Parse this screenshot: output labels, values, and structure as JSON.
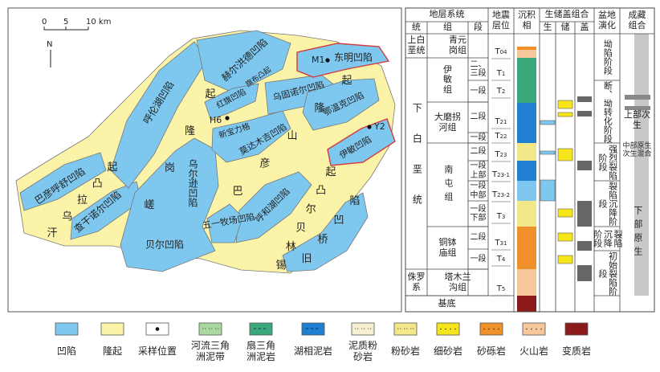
{
  "map": {
    "scale": {
      "labels": [
        "0",
        "5",
        "10 km"
      ]
    },
    "north": "N",
    "labels": [
      "巴彦呼舒凹陷",
      "汗乌拉凸起",
      "查干诺尔凹陷",
      "呼伦湖凹陷",
      "嵯岗隆起",
      "赫尔洪德凹陷",
      "旗布凸起",
      "红旗凹陷",
      "新宝力格",
      "乌固诺尔凹陷",
      "东明凹陷",
      "鄂温克凹陷",
      "莫达木吉凹陷",
      "巴彦山隆起",
      "乌尔逊凹陷",
      "贝尔凹陷",
      "五一牧场凹陷",
      "呼和湖凹陷",
      "伊敏凹陷",
      "锡林贝尔凸起",
      "旧桥凹陷"
    ],
    "wells": [
      "M1",
      "H6",
      "Y2"
    ]
  },
  "table": {
    "headers": {
      "strata": "地层系统",
      "series": "统",
      "formation": "组",
      "member": "段",
      "horizon": "地震层位",
      "facies": "沉积相",
      "combo": "生储盖组合",
      "source": "生",
      "reservoir": "储",
      "seal": "盖",
      "evolution": "盆地演化",
      "play": "成藏组合"
    },
    "series": [
      "上白垩统",
      "下白垩统",
      "侏罗系"
    ],
    "formations": [
      "青元岗组",
      "伊敏组",
      "大磨拐河组",
      "南屯组",
      "铜钵庙组",
      "塔木兰沟组"
    ],
    "members": [
      "二、三段",
      "一段",
      "二段",
      "一段",
      "二段",
      "一段上部",
      "一段中部",
      "一段下部",
      "二段",
      "一段"
    ],
    "horizons": [
      {
        "main": "T",
        "sub": "04"
      },
      {
        "main": "T",
        "sub": "1"
      },
      {
        "main": "T",
        "sub": "2"
      },
      {
        "main": "T",
        "sub": "21"
      },
      {
        "main": "T",
        "sub": "22"
      },
      {
        "main": "T",
        "sub": "23"
      },
      {
        "main": "T",
        "sub": "23-1"
      },
      {
        "main": "T",
        "sub": "23-2"
      },
      {
        "main": "T",
        "sub": "3"
      },
      {
        "main": "T",
        "sub": "31"
      },
      {
        "main": "T",
        "sub": "4"
      },
      {
        "main": "T",
        "sub": "5"
      }
    ],
    "basement": "基底",
    "evolution": [
      "坳陷阶段",
      "断、坳转化阶段",
      "强烈裂陷阶段",
      "裂陷沉降阶段",
      "裂陷沉降阶段",
      "初始裂陷阶段"
    ],
    "plays": [
      "上部次生",
      "中部原生次生混合",
      "下部原生"
    ]
  },
  "legend": [
    "凹陷",
    "隆起",
    "采样位置",
    "河流三角洲泥带",
    "扇三角洲泥岩",
    "湖相泥岩",
    "泥质粉砂岩",
    "粉砂岩",
    "细砂岩",
    "砂砾岩",
    "火山岩",
    "变质岩"
  ]
}
